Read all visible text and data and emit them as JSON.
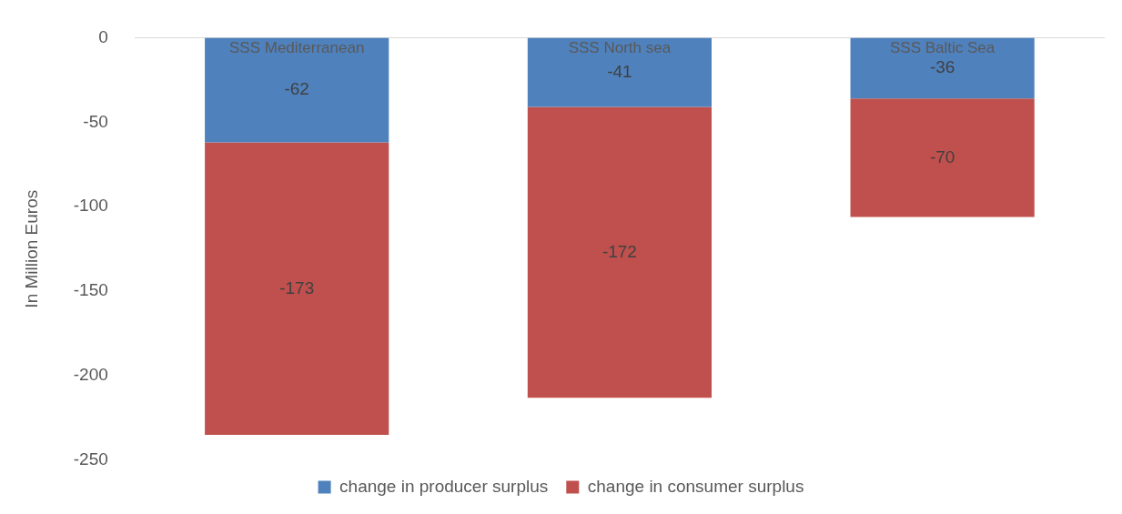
{
  "chart_data": {
    "type": "bar",
    "stacked": true,
    "ylabel": "In Million Euros",
    "categories": [
      "SSS Mediterranean",
      "SSS North sea",
      "SSS Baltic Sea"
    ],
    "series": [
      {
        "name": "change in producer surplus",
        "color": "#4f81bd",
        "values": [
          -62,
          -41,
          -36
        ]
      },
      {
        "name": "change in consumer surplus",
        "color": "#c0504d",
        "values": [
          -173,
          -172,
          -70
        ]
      }
    ],
    "ylim": [
      -250,
      0
    ],
    "yticks": [
      -250,
      -200,
      -150,
      -100,
      -50,
      0
    ],
    "grid": false,
    "legend": "bottom",
    "data_labels": true
  }
}
